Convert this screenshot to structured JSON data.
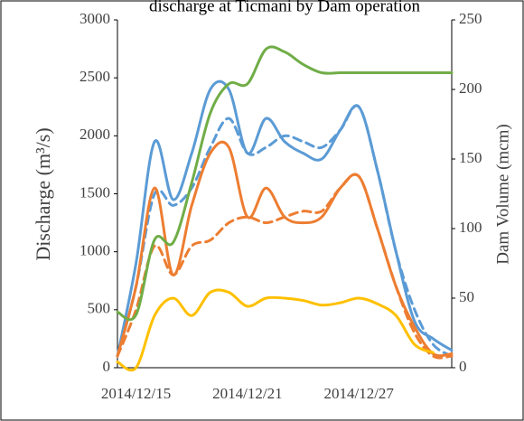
{
  "chart_data": {
    "type": "line",
    "title": "discharge at Ticmani by Dam operation",
    "y_label": "Discharge (m³/s)",
    "y2_label": "Dam Volume (mcm)",
    "categories": [
      null,
      "2014/12/15",
      null,
      null,
      null,
      null,
      null,
      "2014/12/21",
      null,
      null,
      null,
      null,
      null,
      "2014/12/27",
      null,
      null,
      null,
      null,
      null
    ],
    "ylim": [
      0,
      3000
    ],
    "yticks": [
      0,
      500,
      1000,
      1500,
      2000,
      2500,
      3000
    ],
    "y2lim": [
      0,
      250
    ],
    "y2ticks": [
      0,
      50,
      100,
      150,
      200,
      250
    ],
    "series": [
      {
        "color": "#5b9bd5",
        "values": [
          100,
          900,
          1950,
          1450,
          1850,
          2400,
          2400,
          1850,
          2150,
          1950,
          1850,
          1800,
          2050,
          2250,
          1700,
          1000,
          400,
          250,
          150
        ]
      },
      {
        "color": "#5b9bd5",
        "dash": true,
        "values": [
          100,
          700,
          1500,
          1400,
          1550,
          1900,
          2150,
          1850,
          1900,
          2000,
          1950,
          1900,
          2050,
          2250,
          1700,
          1000,
          500,
          200,
          100
        ]
      },
      {
        "color": "#ed7d31",
        "values": [
          100,
          700,
          1550,
          800,
          1400,
          1850,
          1900,
          1300,
          1550,
          1300,
          1250,
          1300,
          1550,
          1650,
          1200,
          700,
          350,
          120,
          120
        ]
      },
      {
        "color": "#ed7d31",
        "dash": true,
        "values": [
          100,
          500,
          1050,
          800,
          1050,
          1100,
          1250,
          1300,
          1250,
          1300,
          1350,
          1350,
          1550,
          1650,
          1200,
          700,
          300,
          100,
          100
        ]
      },
      {
        "color": "#ffc000",
        "values": [
          50,
          0,
          450,
          600,
          450,
          650,
          650,
          530,
          600,
          600,
          580,
          540,
          560,
          600,
          550,
          450,
          200,
          130,
          null
        ]
      },
      {
        "color": "#70ad47",
        "axis": "y2",
        "values": [
          40,
          38,
          92,
          90,
          133,
          183,
          204,
          204,
          229,
          227,
          218,
          212,
          212,
          212,
          212,
          212,
          212,
          212,
          212
        ]
      }
    ]
  }
}
